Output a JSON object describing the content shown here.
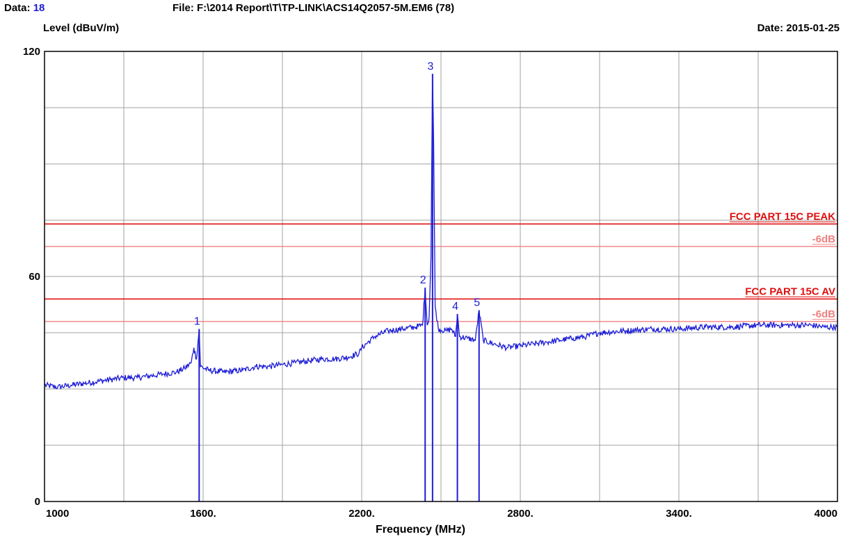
{
  "header": {
    "data_label": "Data:",
    "data_value": "18",
    "file_text": "File: F:\\2014 Report\\T\\TP-LINK\\ACS14Q2057-5M.EM6  (78)",
    "date_text": "Date: 2015-01-25"
  },
  "chart_data": {
    "type": "line",
    "ylabel": "Level (dBuV/m)",
    "xlabel": "Frequency (MHz)",
    "xlim": [
      1000,
      4000
    ],
    "ylim": [
      0,
      120
    ],
    "x_ticks": [
      1000,
      1600,
      2200,
      2800,
      3400,
      4000
    ],
    "x_tick_labels": [
      "1000",
      "1600.",
      "2200.",
      "2800.",
      "3400.",
      "4000"
    ],
    "y_tick_labels": [
      "0",
      "60",
      "120"
    ],
    "y_tick_values": [
      0,
      60,
      120
    ],
    "grid": true,
    "colors": {
      "trace": "#1c1cd6",
      "limit": "#e01010",
      "limit_margin": "#f08080",
      "grid": "#a0a0a0"
    },
    "limit_lines": [
      {
        "label": "FCC PART 15C  PEAK",
        "value": 74,
        "style": "limit"
      },
      {
        "label": "-6dB",
        "value": 68,
        "style": "margin"
      },
      {
        "label": "FCC PART 15C AV",
        "value": 54,
        "style": "limit"
      },
      {
        "label": "-6dB",
        "value": 48,
        "style": "margin"
      }
    ],
    "markers": [
      {
        "label": "1",
        "x": 1585,
        "y": 46
      },
      {
        "label": "2",
        "x": 2440,
        "y": 57
      },
      {
        "label": "3",
        "x": 2468,
        "y": 114
      },
      {
        "label": "4",
        "x": 2562,
        "y": 50
      },
      {
        "label": "5",
        "x": 2644,
        "y": 51
      }
    ],
    "series": [
      {
        "x": [
          1000,
          1050,
          1100,
          1150,
          1200,
          1250,
          1300,
          1350,
          1400,
          1450,
          1500,
          1530,
          1555,
          1565,
          1575,
          1585,
          1590,
          1620,
          1680,
          1750,
          1800,
          1850,
          1900,
          1950,
          2000,
          2050,
          2100,
          2150,
          2190,
          2200,
          2250,
          2300,
          2350,
          2400,
          2430,
          2440,
          2448,
          2455,
          2462,
          2468,
          2472,
          2478,
          2490,
          2520,
          2540,
          2555,
          2562,
          2570,
          2600,
          2630,
          2644,
          2660,
          2700,
          2750,
          2800,
          2850,
          2900,
          2950,
          3000,
          3050,
          3100,
          3200,
          3300,
          3400,
          3500,
          3600,
          3700,
          3800,
          3900,
          3950,
          4000
        ],
        "y": [
          31,
          30.5,
          31,
          31.5,
          32,
          32.5,
          33,
          33,
          33.5,
          34,
          34.5,
          35.5,
          37,
          41,
          38,
          46,
          36,
          35,
          34.5,
          35,
          36,
          36,
          36.5,
          37,
          37.5,
          38,
          38,
          38.5,
          39.5,
          41,
          44,
          45.5,
          46,
          46.5,
          47,
          57,
          47,
          49,
          65,
          114,
          96,
          52,
          46,
          45.5,
          46,
          44,
          50,
          44,
          43.5,
          43,
          51,
          43,
          42,
          41,
          41.5,
          42,
          42.5,
          43,
          43.5,
          44,
          45,
          45.5,
          46,
          46,
          46.5,
          46.5,
          47,
          47,
          47,
          46.5,
          46.5
        ]
      }
    ]
  }
}
